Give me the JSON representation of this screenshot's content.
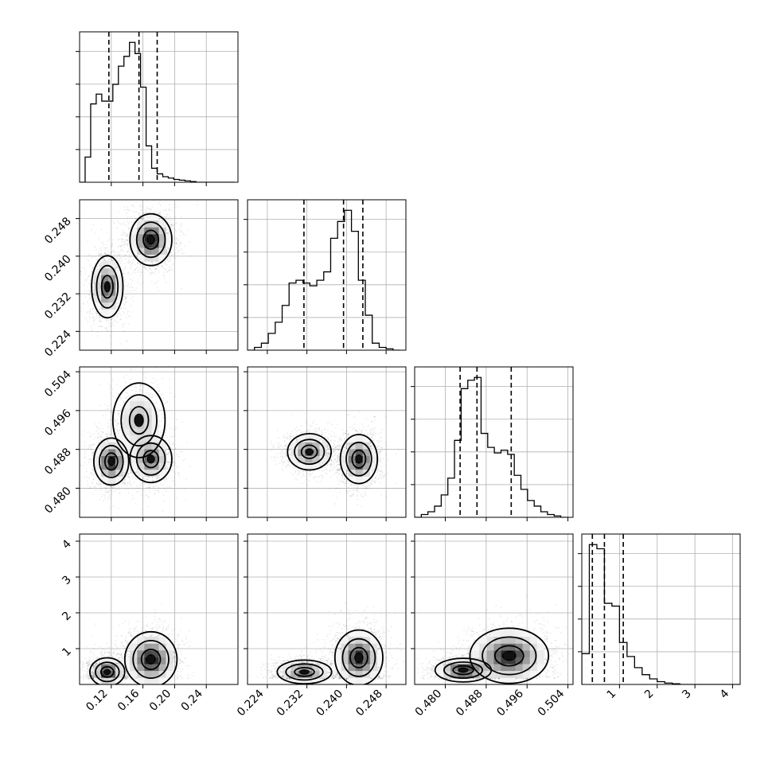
{
  "chart_data": {
    "type": "corner",
    "grid": true,
    "parameters": [
      {
        "index": 0,
        "range": [
          0.08,
          0.28
        ],
        "ticks": [
          0.12,
          0.16,
          0.2,
          0.24
        ],
        "tick_labels": [
          "0.12",
          "0.16",
          "0.20",
          "0.24"
        ],
        "quantiles": [
          0.117,
          0.155,
          0.178
        ],
        "hist_bins": [
          0.08,
          0.087,
          0.094,
          0.101,
          0.108,
          0.115,
          0.122,
          0.129,
          0.136,
          0.143,
          0.15,
          0.157,
          0.164,
          0.171,
          0.178,
          0.185,
          0.192,
          0.199,
          0.206,
          0.213,
          0.22,
          0.227,
          0.234,
          0.241,
          0.248,
          0.255,
          0.262,
          0.269,
          0.276
        ],
        "hist_values": [
          0.0,
          0.18,
          0.56,
          0.63,
          0.58,
          0.58,
          0.7,
          0.83,
          0.9,
          1.0,
          0.92,
          0.68,
          0.26,
          0.1,
          0.06,
          0.04,
          0.03,
          0.02,
          0.015,
          0.01,
          0.005,
          0.0,
          0.0,
          0.0,
          0.0,
          0.0,
          0.0,
          0.0
        ]
      },
      {
        "index": 1,
        "range": [
          0.22,
          0.252
        ],
        "ticks": [
          0.224,
          0.232,
          0.24,
          0.248
        ],
        "tick_labels": [
          "0.224",
          "0.232",
          "0.240",
          "0.248"
        ],
        "quantiles": [
          0.2314,
          0.2394,
          0.2433
        ],
        "hist_bins": [
          0.22,
          0.2214,
          0.2228,
          0.2242,
          0.2256,
          0.227,
          0.2284,
          0.2298,
          0.2312,
          0.2326,
          0.234,
          0.2354,
          0.2368,
          0.2382,
          0.2396,
          0.241,
          0.2424,
          0.2438,
          0.2452,
          0.2466,
          0.248,
          0.2494,
          0.2508
        ],
        "hist_values": [
          0.0,
          0.02,
          0.05,
          0.12,
          0.2,
          0.32,
          0.48,
          0.5,
          0.48,
          0.46,
          0.5,
          0.56,
          0.8,
          0.92,
          1.0,
          0.85,
          0.5,
          0.25,
          0.05,
          0.02,
          0.01,
          0.0
        ]
      },
      {
        "index": 2,
        "range": [
          0.474,
          0.505
        ],
        "ticks": [
          0.48,
          0.488,
          0.496,
          0.504
        ],
        "tick_labels": [
          "0.480",
          "0.488",
          "0.496",
          "0.504"
        ],
        "quantiles": [
          0.4829,
          0.4862,
          0.4929
        ],
        "hist_bins": [
          0.474,
          0.4753,
          0.4766,
          0.4779,
          0.4792,
          0.4805,
          0.4818,
          0.4831,
          0.4844,
          0.4857,
          0.487,
          0.4883,
          0.4896,
          0.4909,
          0.4922,
          0.4935,
          0.4948,
          0.4961,
          0.4974,
          0.4987,
          0.5,
          0.5013,
          0.5026,
          0.5039
        ],
        "hist_values": [
          0.0,
          0.02,
          0.04,
          0.08,
          0.16,
          0.28,
          0.55,
          0.92,
          0.98,
          1.0,
          0.6,
          0.5,
          0.46,
          0.48,
          0.45,
          0.3,
          0.2,
          0.12,
          0.08,
          0.04,
          0.02,
          0.01,
          0.0
        ]
      },
      {
        "index": 3,
        "range": [
          0.0,
          4.2
        ],
        "ticks": [
          1,
          2,
          3,
          4
        ],
        "tick_labels": [
          "1",
          "2",
          "3",
          "4"
        ],
        "quantiles": [
          0.28,
          0.6,
          1.1
        ],
        "hist_bins": [
          0.0,
          0.2,
          0.4,
          0.6,
          0.8,
          1.0,
          1.2,
          1.4,
          1.6,
          1.8,
          2.0,
          2.2,
          2.4,
          2.6,
          2.8,
          3.0,
          3.2,
          3.4,
          3.6,
          3.8,
          4.0,
          4.2
        ],
        "hist_values": [
          0.22,
          1.0,
          0.97,
          0.58,
          0.56,
          0.3,
          0.2,
          0.12,
          0.07,
          0.04,
          0.02,
          0.01,
          0.005,
          0.0,
          0.0,
          0.0,
          0.0,
          0.0,
          0.0,
          0.0,
          0.0
        ]
      }
    ],
    "row_label_ticks": {
      "1": [
        "0.224",
        "0.232",
        "0.240",
        "0.248"
      ],
      "2": [
        "0.480",
        "0.488",
        "0.496",
        "0.504"
      ],
      "3": [
        "1",
        "2",
        "3",
        "4"
      ]
    },
    "modes": {
      "1,0": [
        {
          "x": 0.115,
          "y": 0.2335,
          "sx": 0.009,
          "sy": 0.003,
          "w": 0.45
        },
        {
          "x": 0.17,
          "y": 0.2435,
          "sx": 0.012,
          "sy": 0.0025,
          "w": 0.55
        }
      ],
      "2,0": [
        {
          "x": 0.12,
          "y": 0.4855,
          "sx": 0.01,
          "sy": 0.0022,
          "w": 0.45
        },
        {
          "x": 0.17,
          "y": 0.486,
          "sx": 0.012,
          "sy": 0.0022,
          "w": 0.35
        },
        {
          "x": 0.155,
          "y": 0.494,
          "sx": 0.015,
          "sy": 0.0035,
          "w": 0.2
        }
      ],
      "3,0": [
        {
          "x": 0.115,
          "y": 0.35,
          "sx": 0.01,
          "sy": 0.18,
          "w": 0.5
        },
        {
          "x": 0.17,
          "y": 0.7,
          "sx": 0.015,
          "sy": 0.35,
          "w": 0.5
        }
      ],
      "2,1": [
        {
          "x": 0.2325,
          "y": 0.4875,
          "sx": 0.002,
          "sy": 0.0017,
          "w": 0.45
        },
        {
          "x": 0.2425,
          "y": 0.486,
          "sx": 0.0017,
          "sy": 0.0023,
          "w": 0.55
        }
      ],
      "3,1": [
        {
          "x": 0.2315,
          "y": 0.35,
          "sx": 0.0025,
          "sy": 0.15,
          "w": 0.45
        },
        {
          "x": 0.2425,
          "y": 0.75,
          "sx": 0.0022,
          "sy": 0.35,
          "w": 0.55
        }
      ],
      "3,2": [
        {
          "x": 0.4835,
          "y": 0.4,
          "sx": 0.0025,
          "sy": 0.15,
          "w": 0.5
        },
        {
          "x": 0.4925,
          "y": 0.8,
          "sx": 0.0035,
          "sy": 0.35,
          "w": 0.5
        }
      ]
    }
  }
}
